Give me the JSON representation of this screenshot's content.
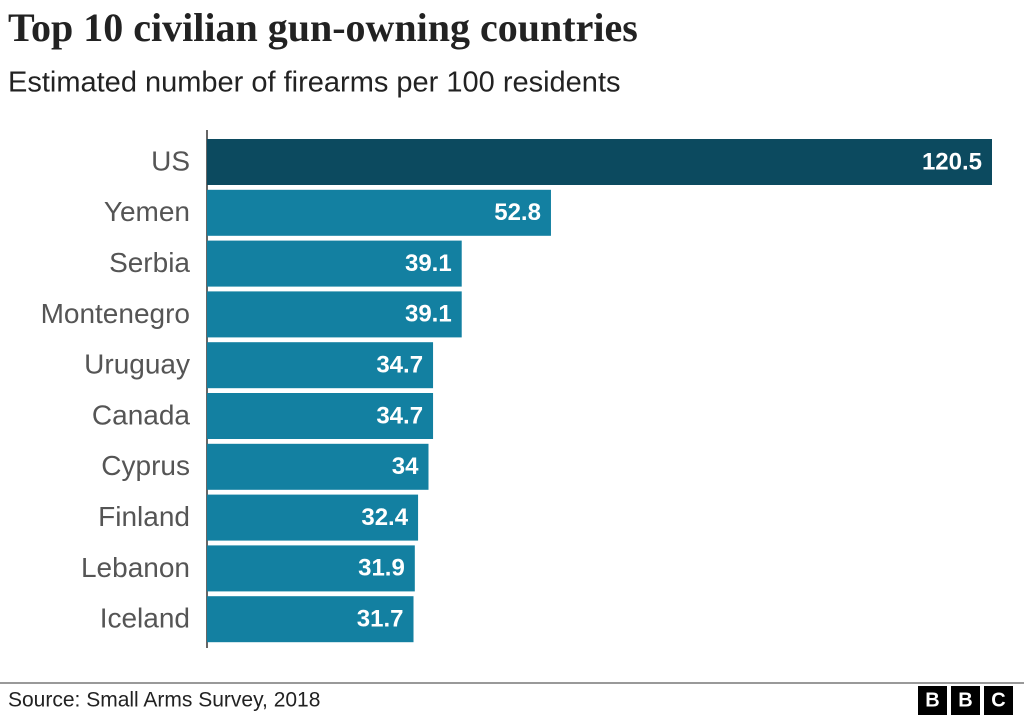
{
  "chart_data": {
    "type": "bar",
    "orientation": "horizontal",
    "title": "Top 10 civilian gun-owning countries",
    "subtitle": "Estimated number of firearms per 100 residents",
    "categories": [
      "US",
      "Yemen",
      "Serbia",
      "Montenegro",
      "Uruguay",
      "Canada",
      "Cyprus",
      "Finland",
      "Lebanon",
      "Iceland"
    ],
    "values": [
      120.5,
      52.8,
      39.1,
      39.1,
      34.7,
      34.7,
      34,
      32.4,
      31.9,
      31.7
    ],
    "colors": [
      "#0c4a5f",
      "#1380a1",
      "#1380a1",
      "#1380a1",
      "#1380a1",
      "#1380a1",
      "#1380a1",
      "#1380a1",
      "#1380a1",
      "#1380a1"
    ],
    "source": "Source: Small Arms Survey, 2018",
    "logo": [
      "B",
      "B",
      "C"
    ]
  }
}
